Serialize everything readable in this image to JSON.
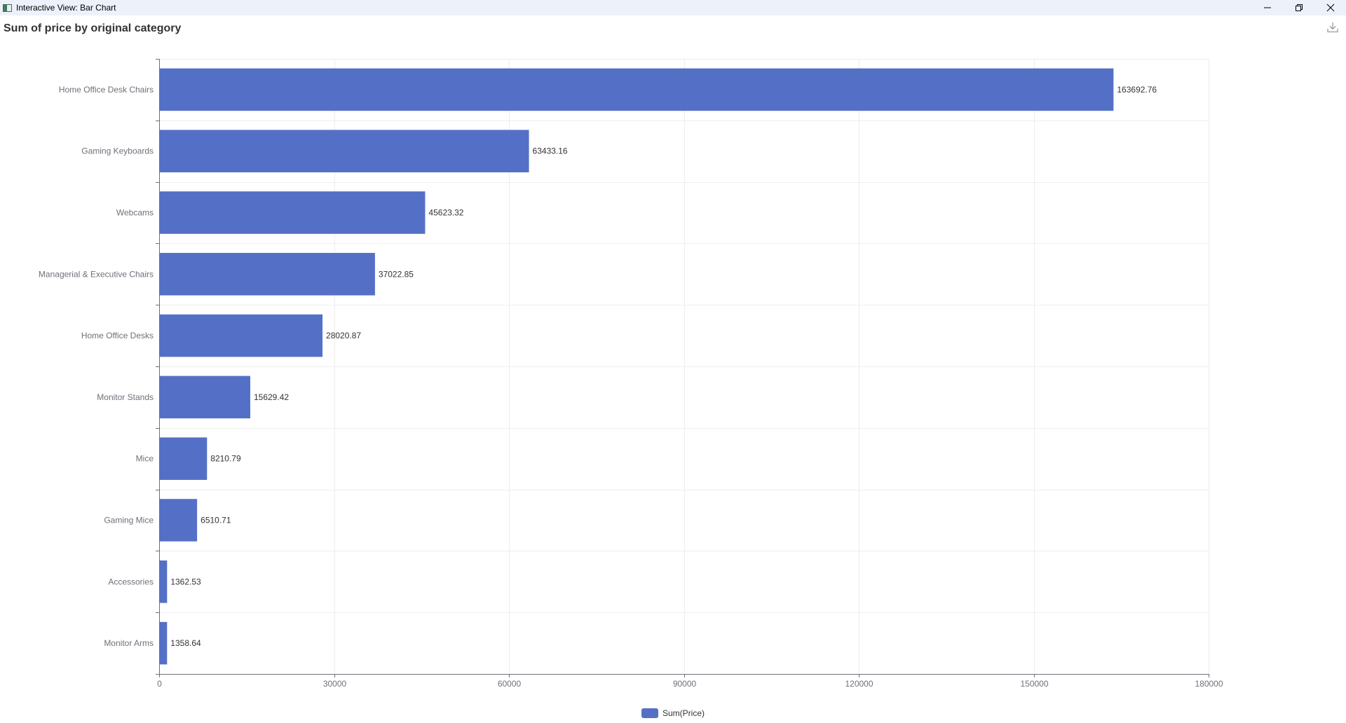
{
  "window": {
    "title": "Interactive View: Bar Chart",
    "controls": {
      "minimize": "minimize-icon",
      "restore": "restore-icon",
      "close": "close-icon"
    }
  },
  "toolbar": {
    "download_icon": "download-icon"
  },
  "colors": {
    "bar": "#5470c6",
    "grid": "#eeeeee",
    "axis": "#6e7079",
    "label": "#333333",
    "titlebar": "#ecf1fa"
  },
  "chart_data": {
    "type": "bar",
    "orientation": "horizontal",
    "title": "Sum of price by original category",
    "categories": [
      "Home Office Desk Chairs",
      "Gaming Keyboards",
      "Webcams",
      "Managerial & Executive Chairs",
      "Home Office Desks",
      "Monitor Stands",
      "Mice",
      "Gaming Mice",
      "Accessories",
      "Monitor Arms"
    ],
    "series": [
      {
        "name": "Sum(Price)",
        "values": [
          163692.76,
          63433.16,
          45623.32,
          37022.85,
          28020.87,
          15629.42,
          8210.79,
          6510.71,
          1362.53,
          1358.64
        ],
        "labels": [
          "163692.76",
          "63433.16",
          "45623.32",
          "37022.85",
          "28020.87",
          "15629.42",
          "8210.79",
          "6510.71",
          "1362.53",
          "1358.64"
        ]
      }
    ],
    "xlim": [
      0,
      180000
    ],
    "xticks": [
      0,
      30000,
      60000,
      90000,
      120000,
      150000,
      180000
    ],
    "xtick_labels": [
      "0",
      "30000",
      "60000",
      "90000",
      "120000",
      "150000",
      "180000"
    ],
    "grid": true,
    "legend": "bottom-center"
  }
}
